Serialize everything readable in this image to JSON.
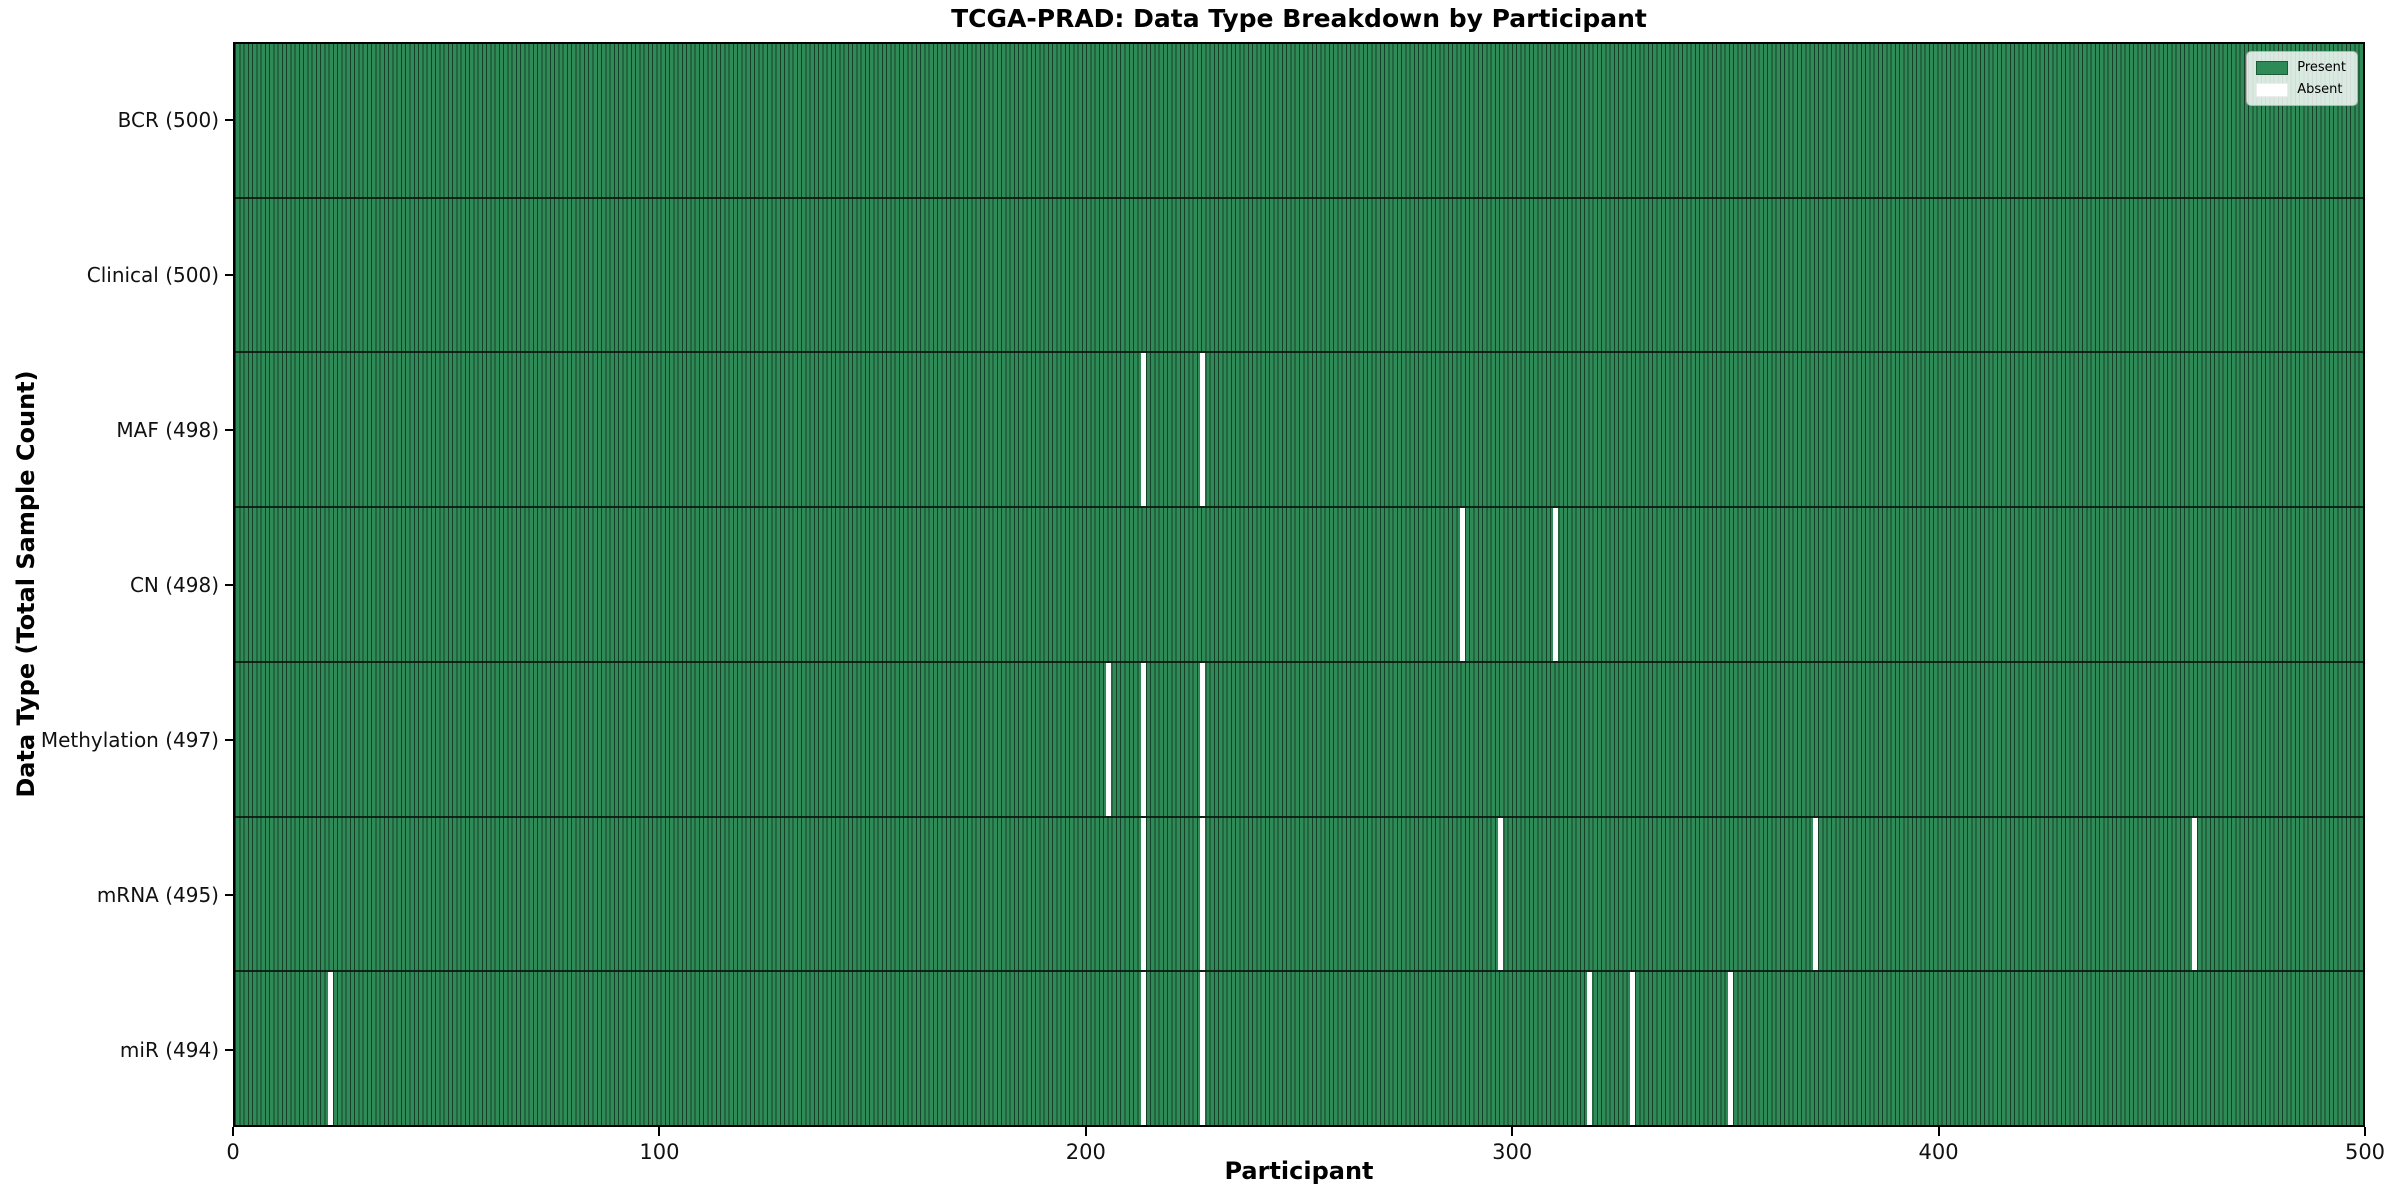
{
  "chart_data": {
    "type": "heatmap",
    "title": "TCGA-PRAD: Data Type Breakdown by Participant",
    "xlabel": "Participant",
    "ylabel": "Data Type (Total Sample Count)",
    "x_axis": {
      "min": 0,
      "max": 500,
      "ticks": [
        0,
        100,
        200,
        300,
        400,
        500
      ]
    },
    "n_participants": 500,
    "legend": {
      "position": "upper-right",
      "present": "Present",
      "absent": "Absent"
    },
    "colors": {
      "present": "#2e8b57",
      "absent": "#ffffff",
      "bar_edge": "#17462c",
      "row_divider": "#0a140e"
    },
    "rows": [
      {
        "label": "BCR (500)",
        "data_type": "BCR",
        "present_count": 500,
        "absent_participants": []
      },
      {
        "label": "Clinical (500)",
        "data_type": "Clinical",
        "present_count": 500,
        "absent_participants": []
      },
      {
        "label": "MAF (498)",
        "data_type": "MAF",
        "present_count": 498,
        "absent_participants": [
          213,
          227
        ]
      },
      {
        "label": "CN (498)",
        "data_type": "CN",
        "present_count": 498,
        "absent_participants": [
          288,
          310
        ]
      },
      {
        "label": "Methylation (497)",
        "data_type": "Methylation",
        "present_count": 497,
        "absent_participants": [
          205,
          213,
          227
        ]
      },
      {
        "label": "mRNA (495)",
        "data_type": "mRNA",
        "present_count": 495,
        "absent_participants": [
          213,
          227,
          297,
          371,
          460
        ]
      },
      {
        "label": "miR (494)",
        "data_type": "miR",
        "present_count": 494,
        "absent_participants": [
          22,
          213,
          227,
          318,
          328,
          351
        ]
      }
    ]
  }
}
